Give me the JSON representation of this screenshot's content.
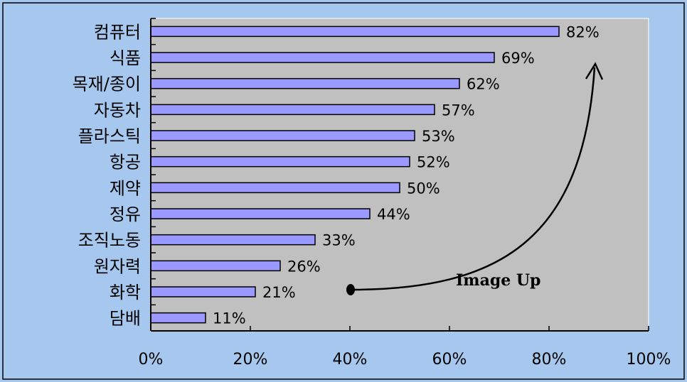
{
  "chart_data": {
    "type": "bar",
    "orientation": "horizontal",
    "categories": [
      "컴퓨터",
      "식품",
      "목재/종이",
      "자동차",
      "플라스틱",
      "항공",
      "제약",
      "정유",
      "조직노동",
      "원자력",
      "화학",
      "담배"
    ],
    "values": [
      82,
      69,
      62,
      57,
      53,
      52,
      50,
      44,
      33,
      26,
      21,
      11
    ],
    "value_labels": [
      "82%",
      "69%",
      "62%",
      "57%",
      "53%",
      "52%",
      "50%",
      "44%",
      "33%",
      "26%",
      "21%",
      "11%"
    ],
    "xlim": [
      0,
      100
    ],
    "x_ticks": [
      0,
      20,
      40,
      60,
      80,
      100
    ],
    "x_tick_labels": [
      "0%",
      "20%",
      "40%",
      "60%",
      "80%",
      "100%"
    ],
    "grid": false,
    "annotation": {
      "text": "Image Up",
      "arrow": "curved upward arrow pointing to top-right"
    }
  },
  "colors": {
    "outer_background": "#a6c8ee",
    "plot_background": "#c0c0c0",
    "bar_fill": "#9999ff",
    "bar_stroke": "#000000"
  }
}
